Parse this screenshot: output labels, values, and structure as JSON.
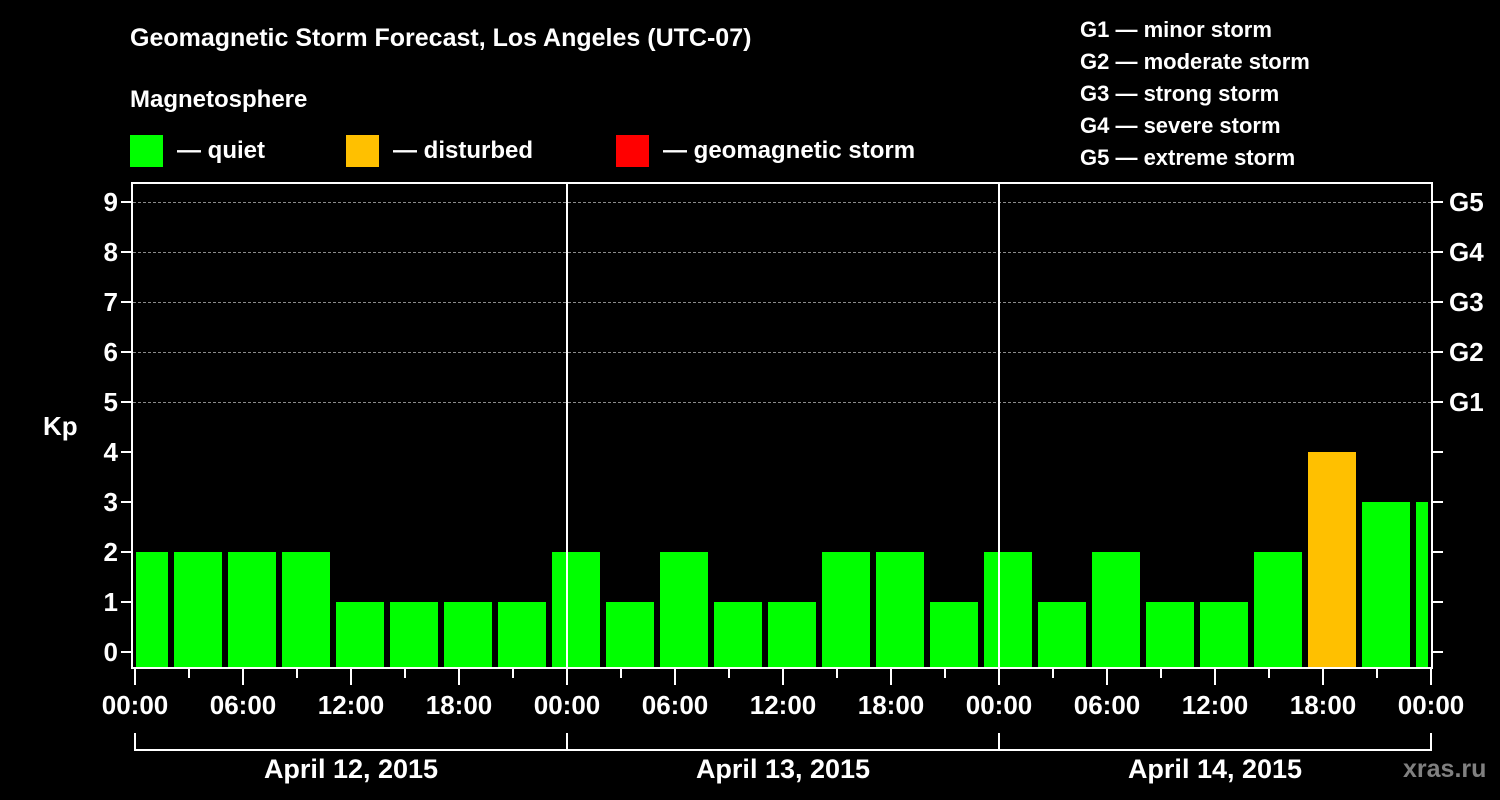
{
  "header": {
    "title": "Geomagnetic Storm Forecast, Los Angeles (UTC-07)",
    "subtitle": "Magnetosphere",
    "legend": [
      {
        "label": "— quiet",
        "color": "#00ff00"
      },
      {
        "label": "— disturbed",
        "color": "#ffc000"
      },
      {
        "label": "— geomagnetic storm",
        "color": "#ff0000"
      }
    ],
    "g_scale": [
      "G1 — minor storm",
      "G2 — moderate storm",
      "G3 — strong storm",
      "G4 — severe storm",
      "G5 — extreme storm"
    ]
  },
  "axes": {
    "y_label": "Kp",
    "y_ticks": [
      "0",
      "1",
      "2",
      "3",
      "4",
      "5",
      "6",
      "7",
      "8",
      "9"
    ],
    "g_ticks": [
      {
        "kp": 5,
        "label": "G1"
      },
      {
        "kp": 6,
        "label": "G2"
      },
      {
        "kp": 7,
        "label": "G3"
      },
      {
        "kp": 8,
        "label": "G4"
      },
      {
        "kp": 9,
        "label": "G5"
      }
    ],
    "x_tick_labels": [
      "00:00",
      "06:00",
      "12:00",
      "18:00",
      "00:00",
      "06:00",
      "12:00",
      "18:00",
      "00:00",
      "06:00",
      "12:00",
      "18:00",
      "00:00"
    ],
    "dates": [
      "April 12, 2015",
      "April 13, 2015",
      "April 14, 2015"
    ]
  },
  "watermark": "xras.ru",
  "chart_data": {
    "type": "bar",
    "title": "Geomagnetic Storm Forecast, Los Angeles (UTC-07)",
    "xlabel": "",
    "ylabel": "Kp",
    "ylim": [
      0,
      9
    ],
    "grid": "dashed horizontal at Kp 5-9",
    "right_axis": {
      "5": "G1",
      "6": "G2",
      "7": "G3",
      "8": "G4",
      "9": "G5"
    },
    "categories": [
      "Apr 12 00:00",
      "Apr 12 03:00",
      "Apr 12 06:00",
      "Apr 12 09:00",
      "Apr 12 12:00",
      "Apr 12 15:00",
      "Apr 12 18:00",
      "Apr 12 21:00",
      "Apr 13 00:00",
      "Apr 13 03:00",
      "Apr 13 06:00",
      "Apr 13 09:00",
      "Apr 13 12:00",
      "Apr 13 15:00",
      "Apr 13 18:00",
      "Apr 13 21:00",
      "Apr 14 00:00",
      "Apr 14 03:00",
      "Apr 14 06:00",
      "Apr 14 09:00",
      "Apr 14 12:00",
      "Apr 14 15:00",
      "Apr 14 18:00",
      "Apr 14 21:00",
      "Apr 15 00:00"
    ],
    "values": [
      2,
      2,
      2,
      2,
      1,
      1,
      1,
      1,
      2,
      1,
      2,
      1,
      1,
      2,
      2,
      1,
      2,
      1,
      2,
      1,
      1,
      2,
      4,
      3,
      3
    ],
    "status": [
      "quiet",
      "quiet",
      "quiet",
      "quiet",
      "quiet",
      "quiet",
      "quiet",
      "quiet",
      "quiet",
      "quiet",
      "quiet",
      "quiet",
      "quiet",
      "quiet",
      "quiet",
      "quiet",
      "quiet",
      "quiet",
      "quiet",
      "quiet",
      "quiet",
      "quiet",
      "disturbed",
      "quiet",
      "quiet"
    ],
    "colors": {
      "quiet": "#00ff00",
      "disturbed": "#ffc000",
      "storm": "#ff0000"
    },
    "legend": [
      "quiet",
      "disturbed",
      "geomagnetic storm"
    ]
  }
}
